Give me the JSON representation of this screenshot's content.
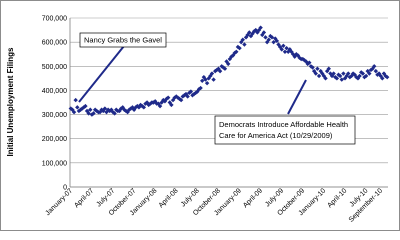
{
  "chart_data": {
    "type": "scatter",
    "y_label": "Initial Unemployment Filings",
    "categories": [
      "January-07",
      null,
      null,
      null,
      null,
      null,
      null,
      null,
      null,
      null,
      null,
      null,
      null,
      "April-07",
      null,
      null,
      null,
      null,
      null,
      null,
      null,
      null,
      null,
      null,
      null,
      null,
      "July-07",
      null,
      null,
      null,
      null,
      null,
      null,
      null,
      null,
      null,
      null,
      null,
      null,
      "October-07",
      null,
      null,
      null,
      null,
      null,
      null,
      null,
      null,
      null,
      null,
      null,
      null,
      "January-08",
      null,
      null,
      null,
      null,
      null,
      null,
      null,
      null,
      null,
      null,
      null,
      null,
      "April-08",
      null,
      null,
      null,
      null,
      null,
      null,
      null,
      null,
      null,
      null,
      null,
      null,
      "July-08",
      null,
      null,
      null,
      null,
      null,
      null,
      null,
      null,
      null,
      null,
      null,
      null,
      "October-08",
      null,
      null,
      null,
      null,
      null,
      null,
      null,
      null,
      null,
      null,
      null,
      null,
      "January-09",
      null,
      null,
      null,
      null,
      null,
      null,
      null,
      null,
      null,
      null,
      null,
      null,
      "April-09",
      null,
      null,
      null,
      null,
      null,
      null,
      null,
      null,
      null,
      null,
      null,
      null,
      "July-09",
      null,
      null,
      null,
      null,
      null,
      null,
      null,
      null,
      null,
      null,
      null,
      null,
      "October-09",
      null,
      null,
      null,
      null,
      null,
      null,
      null,
      null,
      null,
      null,
      null,
      null,
      "January-10",
      null,
      null,
      null,
      null,
      null,
      null,
      null,
      null,
      null,
      null,
      null,
      null,
      "April-10",
      null,
      null,
      null,
      null,
      null,
      null,
      null,
      null,
      null,
      null,
      null,
      null,
      "July-10",
      null,
      null,
      null,
      null,
      null,
      null,
      null,
      null,
      "September-10",
      null,
      null,
      null,
      null
    ],
    "values": [
      325000,
      320000,
      310000,
      360000,
      330000,
      315000,
      320000,
      325000,
      330000,
      335000,
      315000,
      305000,
      320000,
      300000,
      305000,
      320000,
      315000,
      310000,
      310000,
      320000,
      315000,
      325000,
      310000,
      320000,
      315000,
      320000,
      310000,
      305000,
      320000,
      315000,
      315000,
      325000,
      330000,
      320000,
      315000,
      310000,
      320000,
      325000,
      330000,
      320000,
      330000,
      335000,
      330000,
      340000,
      335000,
      330000,
      345000,
      350000,
      340000,
      345000,
      350000,
      350000,
      355000,
      345000,
      345000,
      335000,
      350000,
      360000,
      355000,
      365000,
      370000,
      350000,
      340000,
      360000,
      370000,
      375000,
      370000,
      365000,
      360000,
      375000,
      380000,
      385000,
      375000,
      390000,
      395000,
      380000,
      385000,
      390000,
      395000,
      405000,
      410000,
      440000,
      455000,
      445000,
      430000,
      450000,
      460000,
      470000,
      445000,
      480000,
      485000,
      490000,
      480000,
      500000,
      495000,
      490000,
      520000,
      510000,
      530000,
      540000,
      545000,
      555000,
      560000,
      580000,
      575000,
      600000,
      610000,
      590000,
      620000,
      630000,
      640000,
      625000,
      635000,
      645000,
      650000,
      640000,
      650000,
      660000,
      630000,
      640000,
      620000,
      600000,
      610000,
      625000,
      620000,
      600000,
      615000,
      605000,
      590000,
      580000,
      570000,
      585000,
      560000,
      575000,
      560000,
      570000,
      560000,
      550000,
      540000,
      550000,
      545000,
      535000,
      530000,
      530000,
      525000,
      520000,
      510000,
      515000,
      500000,
      495000,
      480000,
      470000,
      490000,
      460000,
      480000,
      470000,
      460000,
      450000,
      480000,
      490000,
      470000,
      460000,
      470000,
      455000,
      450000,
      465000,
      460000,
      445000,
      470000,
      450000,
      460000,
      470000,
      455000,
      460000,
      470000,
      465000,
      455000,
      450000,
      460000,
      475000,
      470000,
      455000,
      460000,
      480000,
      470000,
      485000,
      490000,
      500000,
      480000,
      465000,
      470000,
      460000,
      450000,
      470000,
      460000,
      455000
    ],
    "color": "#1f2a8a",
    "ylim": [
      0,
      700000
    ],
    "yticks": [
      {
        "value": 0,
        "label": "0"
      },
      {
        "value": 100000,
        "label": "100,000"
      },
      {
        "value": 200000,
        "label": "200,000"
      },
      {
        "value": 300000,
        "label": "300,000"
      },
      {
        "value": 400000,
        "label": "400,000"
      },
      {
        "value": 500000,
        "label": "500,000"
      },
      {
        "value": 600000,
        "label": "600,000"
      },
      {
        "value": 700000,
        "label": "700,000"
      }
    ],
    "grid": true,
    "annotations": [
      {
        "lines": [
          "Nancy Grabs the Gavel"
        ]
      },
      {
        "lines": [
          "Democrats Introduce Affordable Health",
          "Care for America Act (10/29/2009)"
        ]
      }
    ]
  }
}
